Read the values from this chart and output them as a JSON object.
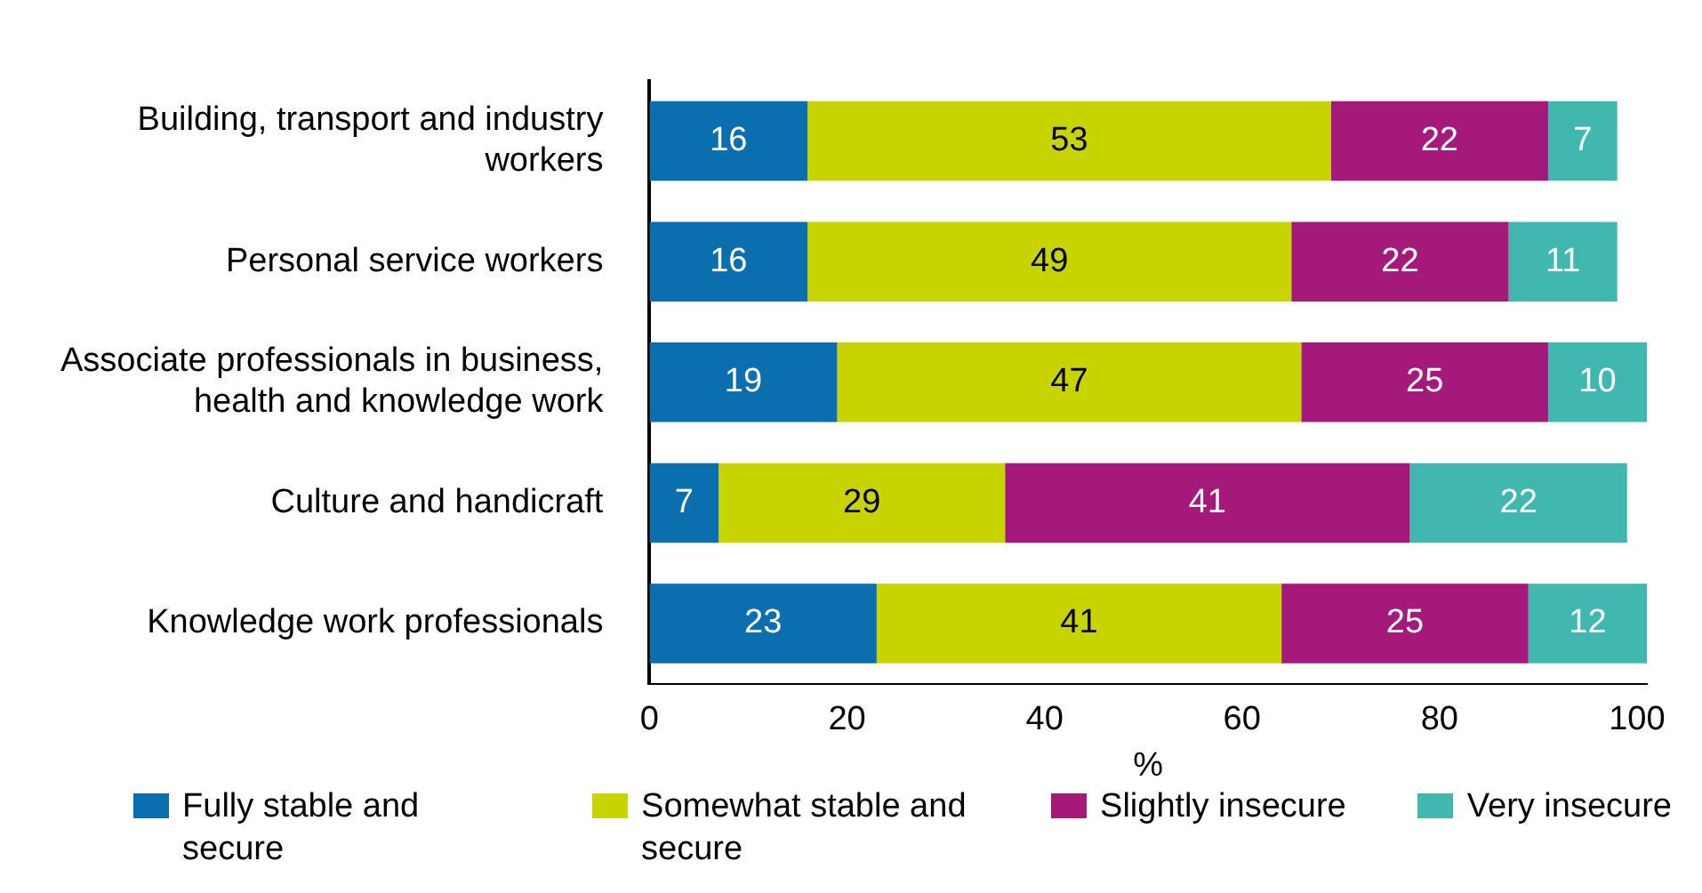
{
  "chart_data": {
    "type": "bar",
    "orientation": "horizontal",
    "stacked": true,
    "xlabel": "%",
    "categories": [
      "Building, transport and industry workers",
      "Personal service workers",
      "Associate professionals in business, health and knowledge work",
      "Culture and handicraft",
      "Knowledge work professionals"
    ],
    "series": [
      {
        "name": "Fully stable and secure",
        "color": "#0a6eaf",
        "values": [
          16,
          16,
          19,
          7,
          23
        ]
      },
      {
        "name": "Somewhat stable and secure",
        "color": "#c8d400",
        "values": [
          53,
          49,
          47,
          29,
          41
        ]
      },
      {
        "name": "Slightly insecure",
        "color": "#a4197a",
        "values": [
          22,
          22,
          25,
          41,
          25
        ]
      },
      {
        "name": "Very insecure",
        "color": "#40b8b0",
        "values": [
          7,
          11,
          10,
          22,
          12
        ]
      }
    ],
    "xlim": [
      0,
      101
    ],
    "xticks": [
      0,
      20,
      40,
      60,
      80,
      100
    ],
    "grid": false,
    "legend": "bottom",
    "data_labels": true
  }
}
